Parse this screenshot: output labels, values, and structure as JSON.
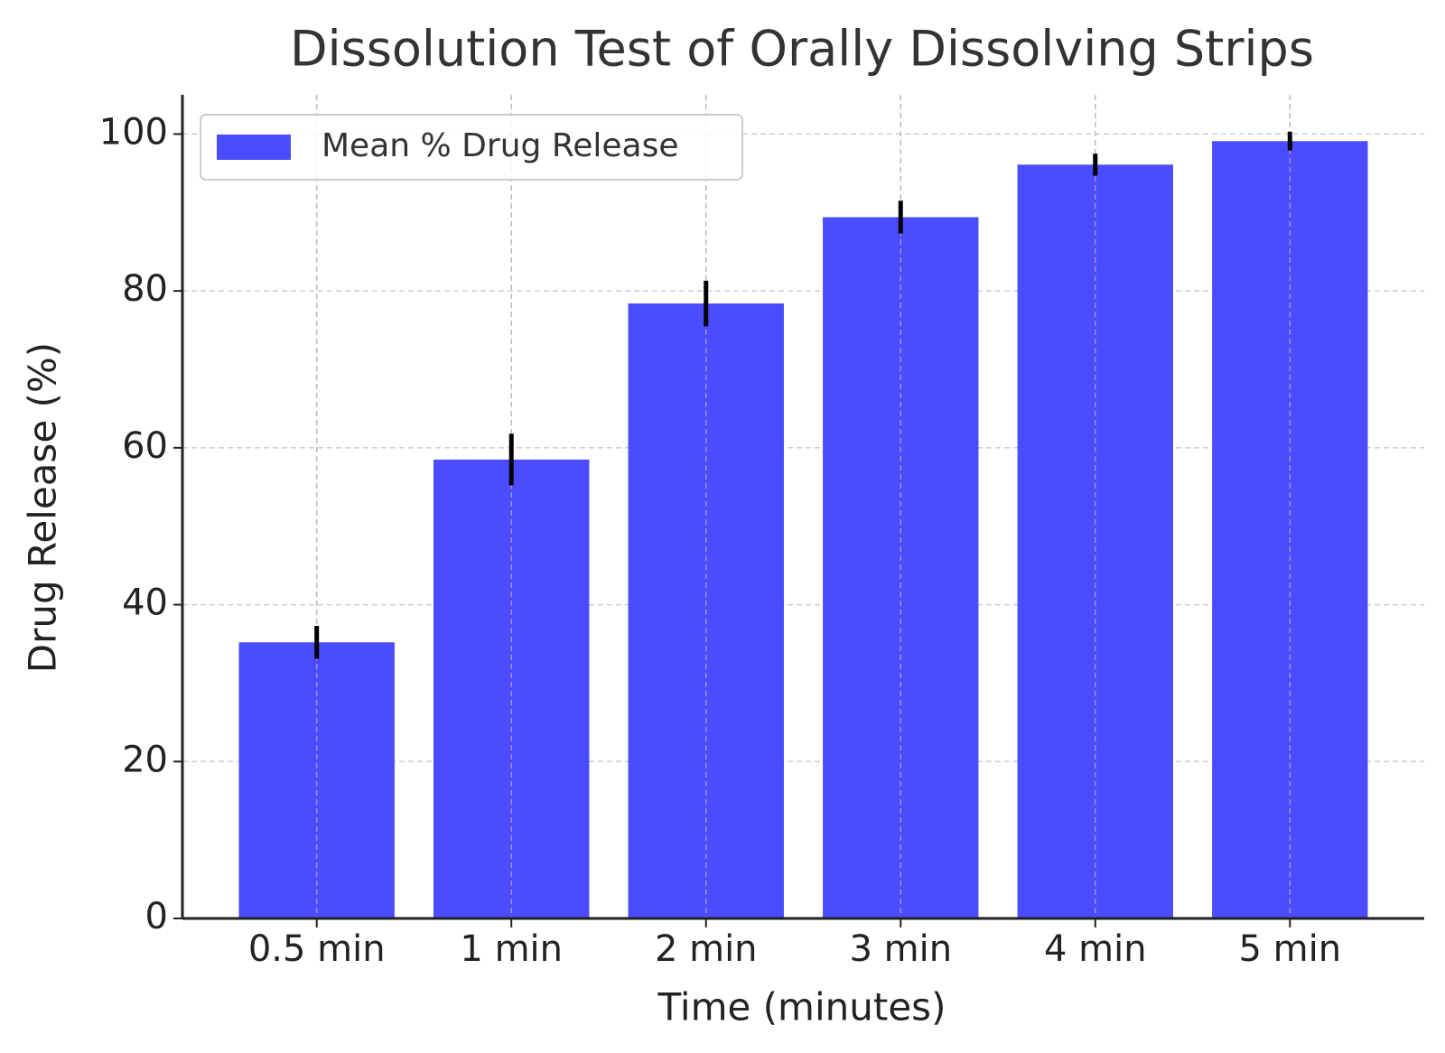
{
  "chart_data": {
    "type": "bar",
    "title": "Dissolution Test of Orally Dissolving Strips",
    "x_label": "Time (minutes)",
    "y_label": "Drug Release (%)",
    "categories": [
      "0.5 min",
      "1 min",
      "2 min",
      "3 min",
      "4 min",
      "5 min"
    ],
    "series": [
      {
        "name": "Mean % Drug Release",
        "color": "#4b4bff",
        "values": [
          35.2,
          58.5,
          78.4,
          89.4,
          96.1,
          99.1
        ],
        "errors": [
          2.1,
          3.3,
          2.9,
          2.1,
          1.4,
          1.2
        ]
      }
    ],
    "ylim": [
      0,
      105
    ],
    "yticks": [
      0,
      20,
      40,
      60,
      80,
      100
    ],
    "grid": true,
    "legend": "upper left"
  }
}
